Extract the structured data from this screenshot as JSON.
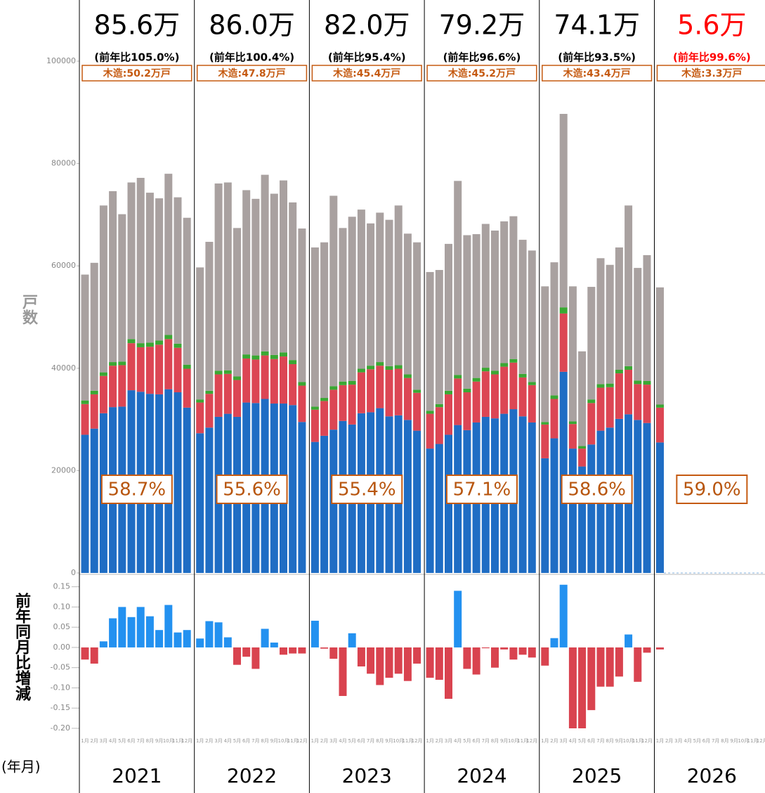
{
  "chart_data": [
    {
      "type": "stacked_bar",
      "y_label": "戸数",
      "ylim": [
        0,
        100000
      ],
      "yticks": [
        0,
        20000,
        40000,
        60000,
        80000,
        100000
      ],
      "series": [
        {
          "color": "#1f6dc4",
          "values": [
            27000,
            28200,
            31200,
            32400,
            32500,
            35700,
            35400,
            35000,
            34900,
            35900,
            35300,
            32300,
            27300,
            28400,
            30500,
            31100,
            30500,
            33300,
            33200,
            34000,
            33100,
            33100,
            32800,
            29500,
            25600,
            26800,
            28000,
            29700,
            29000,
            31200,
            31400,
            32200,
            30600,
            30800,
            29900,
            27800,
            24300,
            25200,
            27000,
            28900,
            27900,
            29400,
            30500,
            30200,
            31100,
            32000,
            30600,
            29400,
            22400,
            26300,
            39300,
            24300,
            20800,
            25100,
            27800,
            28400,
            30100,
            31000,
            29900,
            29300,
            25500
          ]
        },
        {
          "color": "#dc4654",
          "values": [
            6000,
            6700,
            7300,
            8100,
            8100,
            9200,
            8700,
            9200,
            9700,
            9800,
            8700,
            7600,
            6000,
            6600,
            8300,
            7800,
            7200,
            8600,
            8500,
            8500,
            8700,
            9200,
            8000,
            7100,
            6300,
            6800,
            7800,
            7000,
            7800,
            8000,
            8400,
            8300,
            9100,
            9100,
            8200,
            7400,
            6800,
            7200,
            7900,
            9100,
            7400,
            8000,
            8900,
            8600,
            9200,
            9100,
            7600,
            7300,
            6600,
            7700,
            11400,
            4800,
            3500,
            8100,
            8400,
            7900,
            8900,
            8700,
            7000,
            7500,
            6800
          ]
        },
        {
          "color": "#3aa833",
          "values": [
            700,
            700,
            700,
            700,
            700,
            800,
            800,
            800,
            800,
            800,
            800,
            800,
            600,
            600,
            700,
            700,
            700,
            800,
            800,
            800,
            800,
            800,
            800,
            700,
            600,
            600,
            700,
            700,
            700,
            700,
            700,
            700,
            700,
            700,
            700,
            600,
            600,
            600,
            700,
            700,
            700,
            700,
            700,
            700,
            700,
            700,
            700,
            600,
            500,
            700,
            1200,
            500,
            500,
            700,
            700,
            700,
            700,
            700,
            700,
            700,
            600
          ]
        },
        {
          "color": "#a9a1a0",
          "values": [
            24600,
            25000,
            32600,
            33400,
            28800,
            30600,
            32300,
            29300,
            27800,
            31500,
            28600,
            28700,
            25800,
            29100,
            36600,
            36700,
            29000,
            32100,
            30600,
            34500,
            31500,
            33600,
            30800,
            30000,
            31100,
            30400,
            37200,
            30000,
            32100,
            31100,
            27800,
            29200,
            28600,
            31200,
            27500,
            28800,
            27100,
            26200,
            28700,
            37900,
            30000,
            28100,
            28100,
            27400,
            27700,
            27900,
            26200,
            25700,
            26500,
            26000,
            37800,
            26400,
            18500,
            22000,
            24600,
            23200,
            23900,
            31400,
            22000,
            24600,
            22900
          ]
        }
      ],
      "year_summaries": [
        {
          "total": "85.6万",
          "yoy": "(前年比105.0%)",
          "wood": "木造:50.2万戸",
          "share": "58.7%",
          "color": "#000000"
        },
        {
          "total": "86.0万",
          "yoy": "(前年比100.4%)",
          "wood": "木造:47.8万戸",
          "share": "55.6%",
          "color": "#000000"
        },
        {
          "total": "82.0万",
          "yoy": "(前年比95.4%)",
          "wood": "木造:45.4万戸",
          "share": "55.4%",
          "color": "#000000"
        },
        {
          "total": "79.2万",
          "yoy": "(前年比96.6%)",
          "wood": "木造:45.2万戸",
          "share": "57.1%",
          "color": "#000000"
        },
        {
          "total": "74.1万",
          "yoy": "(前年比93.5%)",
          "wood": "木造:43.4万戸",
          "share": "58.6%",
          "color": "#000000"
        },
        {
          "total": "5.6万",
          "yoy": "(前年比99.6%)",
          "wood": "木造:3.3万戸",
          "share": "59.0%",
          "color": "#ff0000"
        }
      ]
    },
    {
      "type": "bar",
      "y_label": "前年同月比増減",
      "x_label": "(年月)",
      "ylim": [
        -0.2,
        0.165
      ],
      "yticks": [
        {
          "value": -0.2,
          "label": "-0.20"
        },
        -0.15,
        {
          "value": -0.1,
          "label": "-0.10"
        },
        -0.05,
        {
          "value": 0,
          "label": "0.00"
        },
        0.05,
        {
          "value": 0.1,
          "label": "0.10"
        },
        0.15
      ],
      "positive_color": "#2391f0",
      "negative_color": "#d9434f",
      "years": [
        "2021",
        "2022",
        "2023",
        "2024",
        "2025",
        "2026"
      ],
      "months": [
        "1月",
        "2月",
        "3月",
        "4月",
        "5月",
        "6月",
        "7月",
        "8月",
        "9月",
        "10月",
        "11月",
        "12月"
      ],
      "values": [
        -0.03,
        -0.04,
        0.015,
        0.072,
        0.1,
        0.075,
        0.1,
        0.077,
        0.043,
        0.105,
        0.037,
        0.043,
        0.022,
        0.065,
        0.062,
        0.025,
        -0.043,
        -0.023,
        -0.053,
        0.046,
        0.012,
        -0.018,
        -0.015,
        -0.015,
        0.066,
        -0.003,
        -0.028,
        -0.12,
        0.035,
        -0.047,
        -0.065,
        -0.093,
        -0.075,
        -0.065,
        -0.083,
        -0.04,
        -0.075,
        -0.08,
        -0.127,
        0.14,
        -0.053,
        -0.067,
        -0.002,
        -0.05,
        -0.005,
        -0.03,
        -0.018,
        -0.025,
        -0.045,
        0.023,
        0.155,
        -0.2,
        -0.2,
        -0.155,
        -0.097,
        -0.097,
        -0.072,
        0.032,
        -0.085,
        -0.013,
        -0.005
      ]
    }
  ]
}
